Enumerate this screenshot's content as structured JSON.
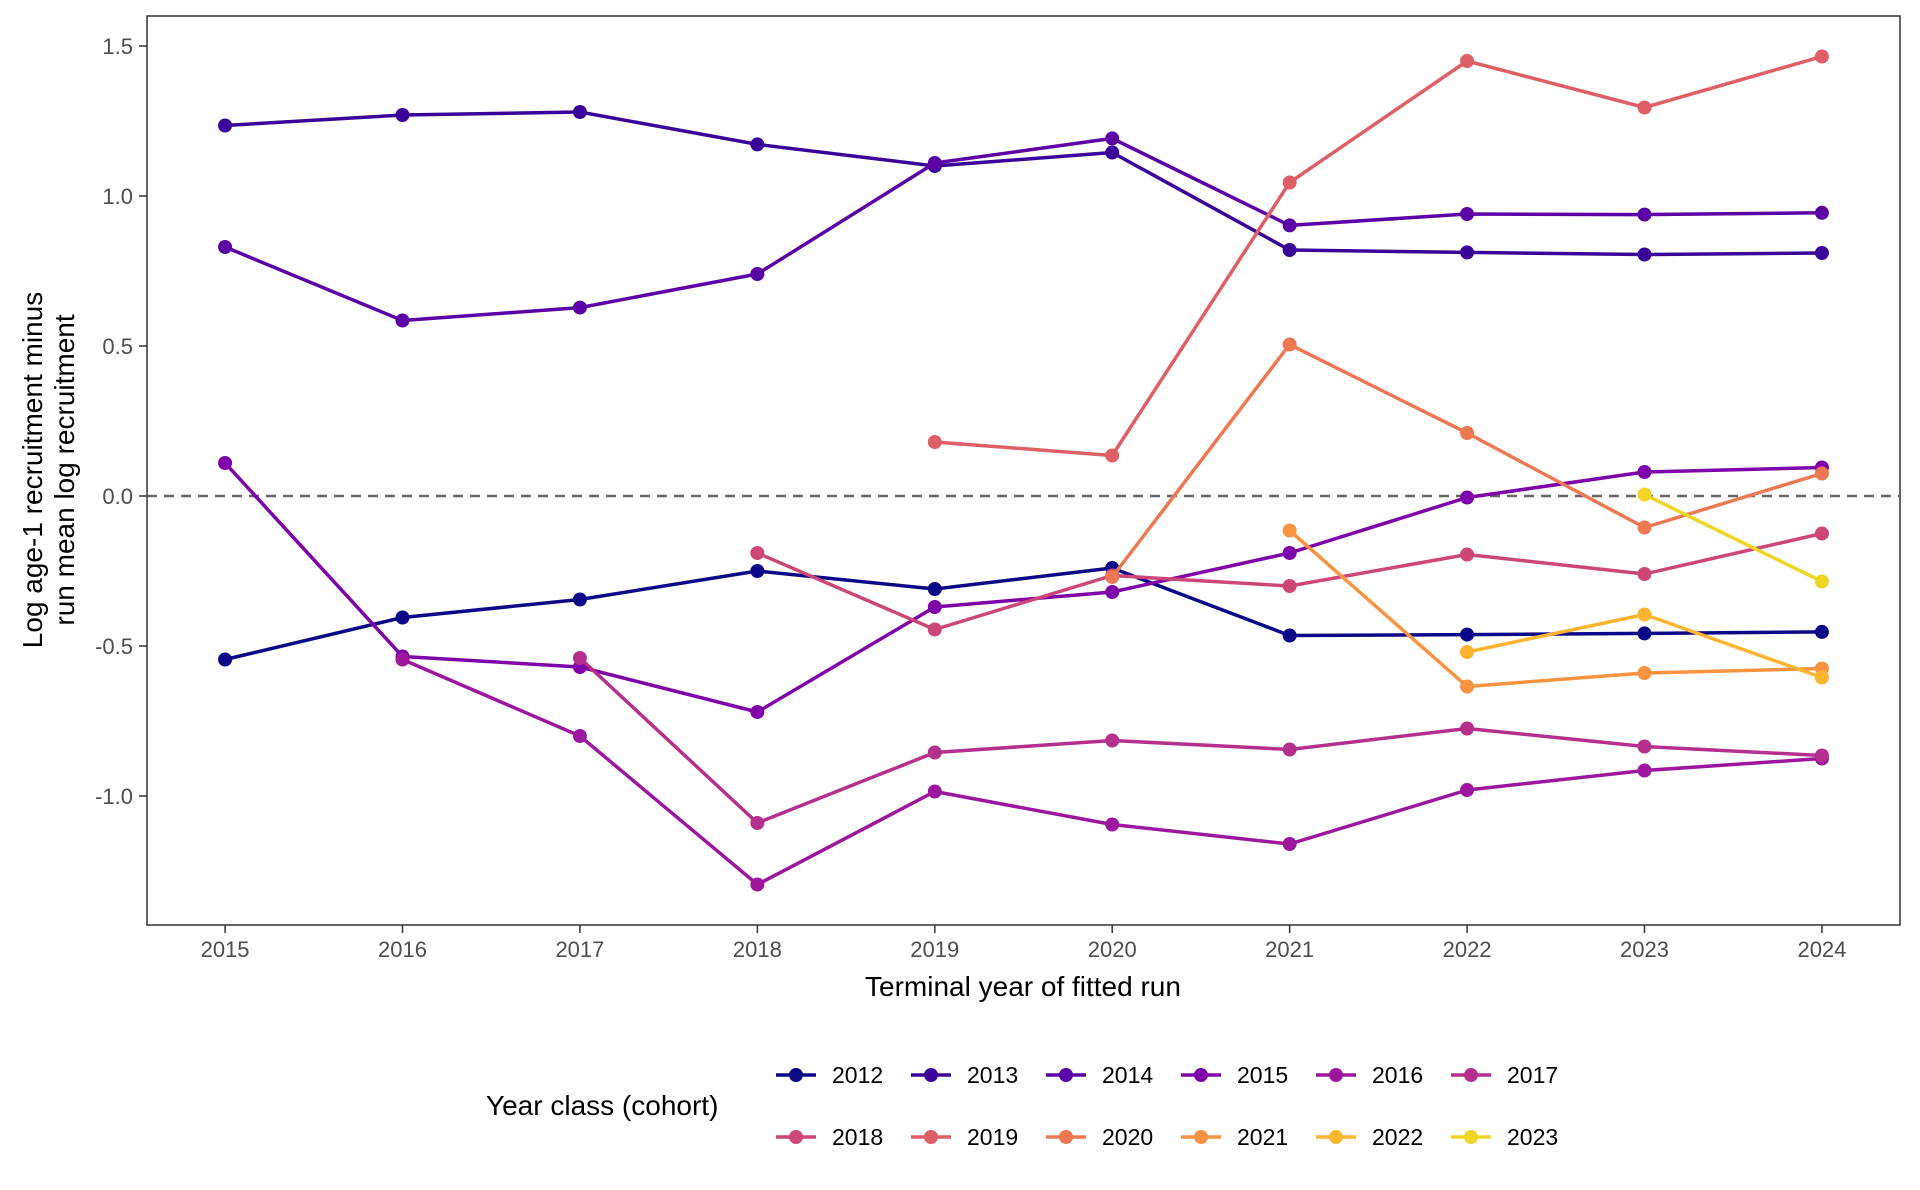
{
  "chart_data": {
    "type": "line",
    "xlabel": "Terminal year of fitted run",
    "ylabel_line1": "Log age-1 recruitment minus",
    "ylabel_line2": "run mean log recruitment",
    "x": [
      2015,
      2016,
      2017,
      2018,
      2019,
      2020,
      2021,
      2022,
      2023,
      2024
    ],
    "x_ticks": [
      "2015",
      "2016",
      "2017",
      "2018",
      "2019",
      "2020",
      "2021",
      "2022",
      "2023",
      "2024"
    ],
    "y_ticks": [
      "-1.0",
      "-0.5",
      "0.0",
      "0.5",
      "1.0",
      "1.5"
    ],
    "y_tick_values": [
      -1.0,
      -0.5,
      0.0,
      0.5,
      1.0,
      1.5
    ],
    "xlim": [
      2014.56,
      2024.44
    ],
    "ylim": [
      -1.43,
      1.6
    ],
    "reference_line": {
      "y": 0.0,
      "style": "dashed",
      "color": "#666666"
    },
    "grid": false,
    "legend_title": "Year class (cohort)",
    "legend_position": "bottom",
    "series": [
      {
        "name": "2012",
        "color": "#0d0887",
        "x": [
          2015,
          2016,
          2017,
          2018,
          2019,
          2020,
          2021,
          2022,
          2023,
          2024
        ],
        "values": [
          -0.545,
          -0.405,
          -0.345,
          -0.25,
          -0.31,
          -0.24,
          -0.465,
          -0.462,
          -0.458,
          -0.453
        ]
      },
      {
        "name": "2013",
        "color": "#3a049a",
        "x": [
          2015,
          2016,
          2017,
          2018,
          2019,
          2020,
          2021,
          2022,
          2023,
          2024
        ],
        "values": [
          1.235,
          1.27,
          1.28,
          1.172,
          1.1,
          1.145,
          0.82,
          0.812,
          0.805,
          0.81
        ]
      },
      {
        "name": "2014",
        "color": "#5c01a6",
        "x": [
          2015,
          2016,
          2017,
          2018,
          2019,
          2020,
          2021,
          2022,
          2023,
          2024
        ],
        "values": [
          0.83,
          0.585,
          0.628,
          0.74,
          1.11,
          1.192,
          0.902,
          0.94,
          0.938,
          0.944
        ]
      },
      {
        "name": "2015",
        "color": "#7e03a8",
        "x": [
          2015,
          2016,
          2017,
          2018,
          2019,
          2020,
          2021,
          2022,
          2023,
          2024
        ],
        "values": [
          0.11,
          -0.535,
          -0.57,
          -0.72,
          -0.37,
          -0.32,
          -0.19,
          -0.005,
          0.08,
          0.095
        ]
      },
      {
        "name": "2016",
        "color": "#9c179e",
        "x": [
          2016,
          2017,
          2018,
          2019,
          2020,
          2021,
          2022,
          2023,
          2024
        ],
        "values": [
          -0.545,
          -0.8,
          -1.295,
          -0.985,
          -1.095,
          -1.16,
          -0.98,
          -0.915,
          -0.875
        ]
      },
      {
        "name": "2017",
        "color": "#b52f8c",
        "x": [
          2017,
          2018,
          2019,
          2020,
          2021,
          2022,
          2023,
          2024
        ],
        "values": [
          -0.54,
          -1.09,
          -0.855,
          -0.815,
          -0.845,
          -0.775,
          -0.835,
          -0.865
        ]
      },
      {
        "name": "2018",
        "color": "#cc4778",
        "x": [
          2018,
          2019,
          2020,
          2021,
          2022,
          2023,
          2024
        ],
        "values": [
          -0.19,
          -0.445,
          -0.265,
          -0.3,
          -0.195,
          -0.26,
          -0.125
        ]
      },
      {
        "name": "2019",
        "color": "#de5f65",
        "x": [
          2019,
          2020,
          2021,
          2022,
          2023,
          2024
        ],
        "values": [
          0.18,
          0.135,
          1.045,
          1.45,
          1.295,
          1.465
        ]
      },
      {
        "name": "2020",
        "color": "#ed7953",
        "x": [
          2020,
          2021,
          2022,
          2023,
          2024
        ],
        "values": [
          -0.27,
          0.505,
          0.21,
          -0.105,
          0.075
        ]
      },
      {
        "name": "2021",
        "color": "#f89441",
        "x": [
          2021,
          2022,
          2023,
          2024
        ],
        "values": [
          -0.115,
          -0.635,
          -0.59,
          -0.575
        ]
      },
      {
        "name": "2022",
        "color": "#fdb42f",
        "x": [
          2022,
          2023,
          2024
        ],
        "values": [
          -0.52,
          -0.395,
          -0.605
        ]
      },
      {
        "name": "2023",
        "color": "#f0d624",
        "x": [
          2023,
          2024
        ],
        "values": [
          0.005,
          -0.285
        ]
      }
    ]
  }
}
